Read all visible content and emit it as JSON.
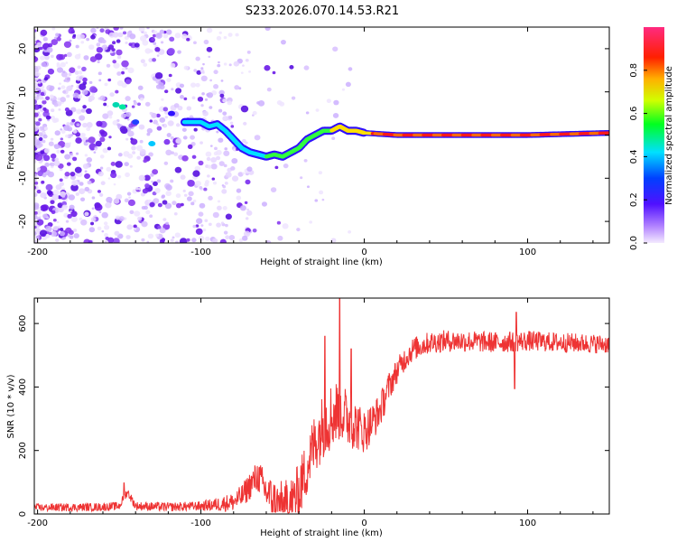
{
  "figure_title": "S233.2026.070.14.53.R21",
  "chart_data": [
    {
      "type": "heatmap",
      "name": "spectrogram",
      "xlabel": "Height of straight line (km)",
      "ylabel": "Frequency (Hz)",
      "xlim": [
        -202,
        150
      ],
      "ylim": [
        -25,
        25
      ],
      "xticks": [
        -200,
        -100,
        0,
        100
      ],
      "yticks": [
        -20,
        -10,
        0,
        10,
        20
      ],
      "colorbar": {
        "label": "Normalized spectral amplitude",
        "range": [
          0,
          1
        ],
        "ticks": [
          "0.0",
          "0.2",
          "0.4",
          "0.6",
          "0.8"
        ],
        "colors": [
          "#e8d8ff",
          "#8a3cf0",
          "#0000ff",
          "#00e8ff",
          "#00ff00",
          "#ffff00",
          "#ff8000",
          "#ff0000",
          "#ff3080"
        ]
      },
      "ridge": {
        "description": "dominant frequency track",
        "x": [
          -110,
          -100,
          -95,
          -90,
          -85,
          -80,
          -75,
          -70,
          -65,
          -60,
          -55,
          -50,
          -45,
          -40,
          -35,
          -30,
          -25,
          -20,
          -15,
          -10,
          -5,
          0,
          20,
          50,
          100,
          150
        ],
        "y": [
          3,
          3,
          2,
          2.5,
          1,
          -1,
          -3,
          -4,
          -4.5,
          -5,
          -4.5,
          -5,
          -4,
          -3,
          -1,
          0,
          1,
          1,
          2,
          1,
          1,
          0.5,
          0,
          0,
          0,
          0.5
        ]
      }
    },
    {
      "type": "line",
      "name": "snr",
      "xlabel": "Height of straight line (km)",
      "ylabel": "SNR (10 * v/v)",
      "xlim": [
        -202,
        150
      ],
      "ylim": [
        0,
        680
      ],
      "xticks": [
        -200,
        -100,
        0,
        100
      ],
      "yticks": [
        0,
        200,
        400,
        600
      ],
      "color": "#ee3333",
      "trend": {
        "x": [
          -202,
          -160,
          -150,
          -145,
          -140,
          -120,
          -100,
          -90,
          -80,
          -75,
          -70,
          -65,
          -60,
          -55,
          -50,
          -45,
          -40,
          -35,
          -30,
          -25,
          -20,
          -15,
          -10,
          -5,
          0,
          5,
          10,
          15,
          20,
          25,
          30,
          40,
          50,
          60,
          80,
          100,
          120,
          150
        ],
        "y": [
          20,
          22,
          25,
          70,
          25,
          22,
          25,
          30,
          38,
          55,
          90,
          120,
          70,
          40,
          30,
          35,
          70,
          150,
          230,
          280,
          310,
          330,
          300,
          280,
          260,
          290,
          330,
          400,
          450,
          490,
          520,
          540,
          545,
          545,
          540,
          545,
          540,
          535
        ]
      },
      "noise": {
        "x": [
          -202,
          -100,
          -80,
          -60,
          -40,
          -20,
          0,
          20,
          40,
          150
        ],
        "amp": [
          12,
          15,
          30,
          60,
          90,
          110,
          70,
          40,
          35,
          30
        ]
      },
      "spikes": [
        {
          "x": -147,
          "y": 98
        },
        {
          "x": -15,
          "y": 680
        },
        {
          "x": -24,
          "y": 560
        },
        {
          "x": -8,
          "y": 520
        },
        {
          "x": 92,
          "y": 395
        },
        {
          "x": 93,
          "y": 635
        }
      ]
    }
  ]
}
